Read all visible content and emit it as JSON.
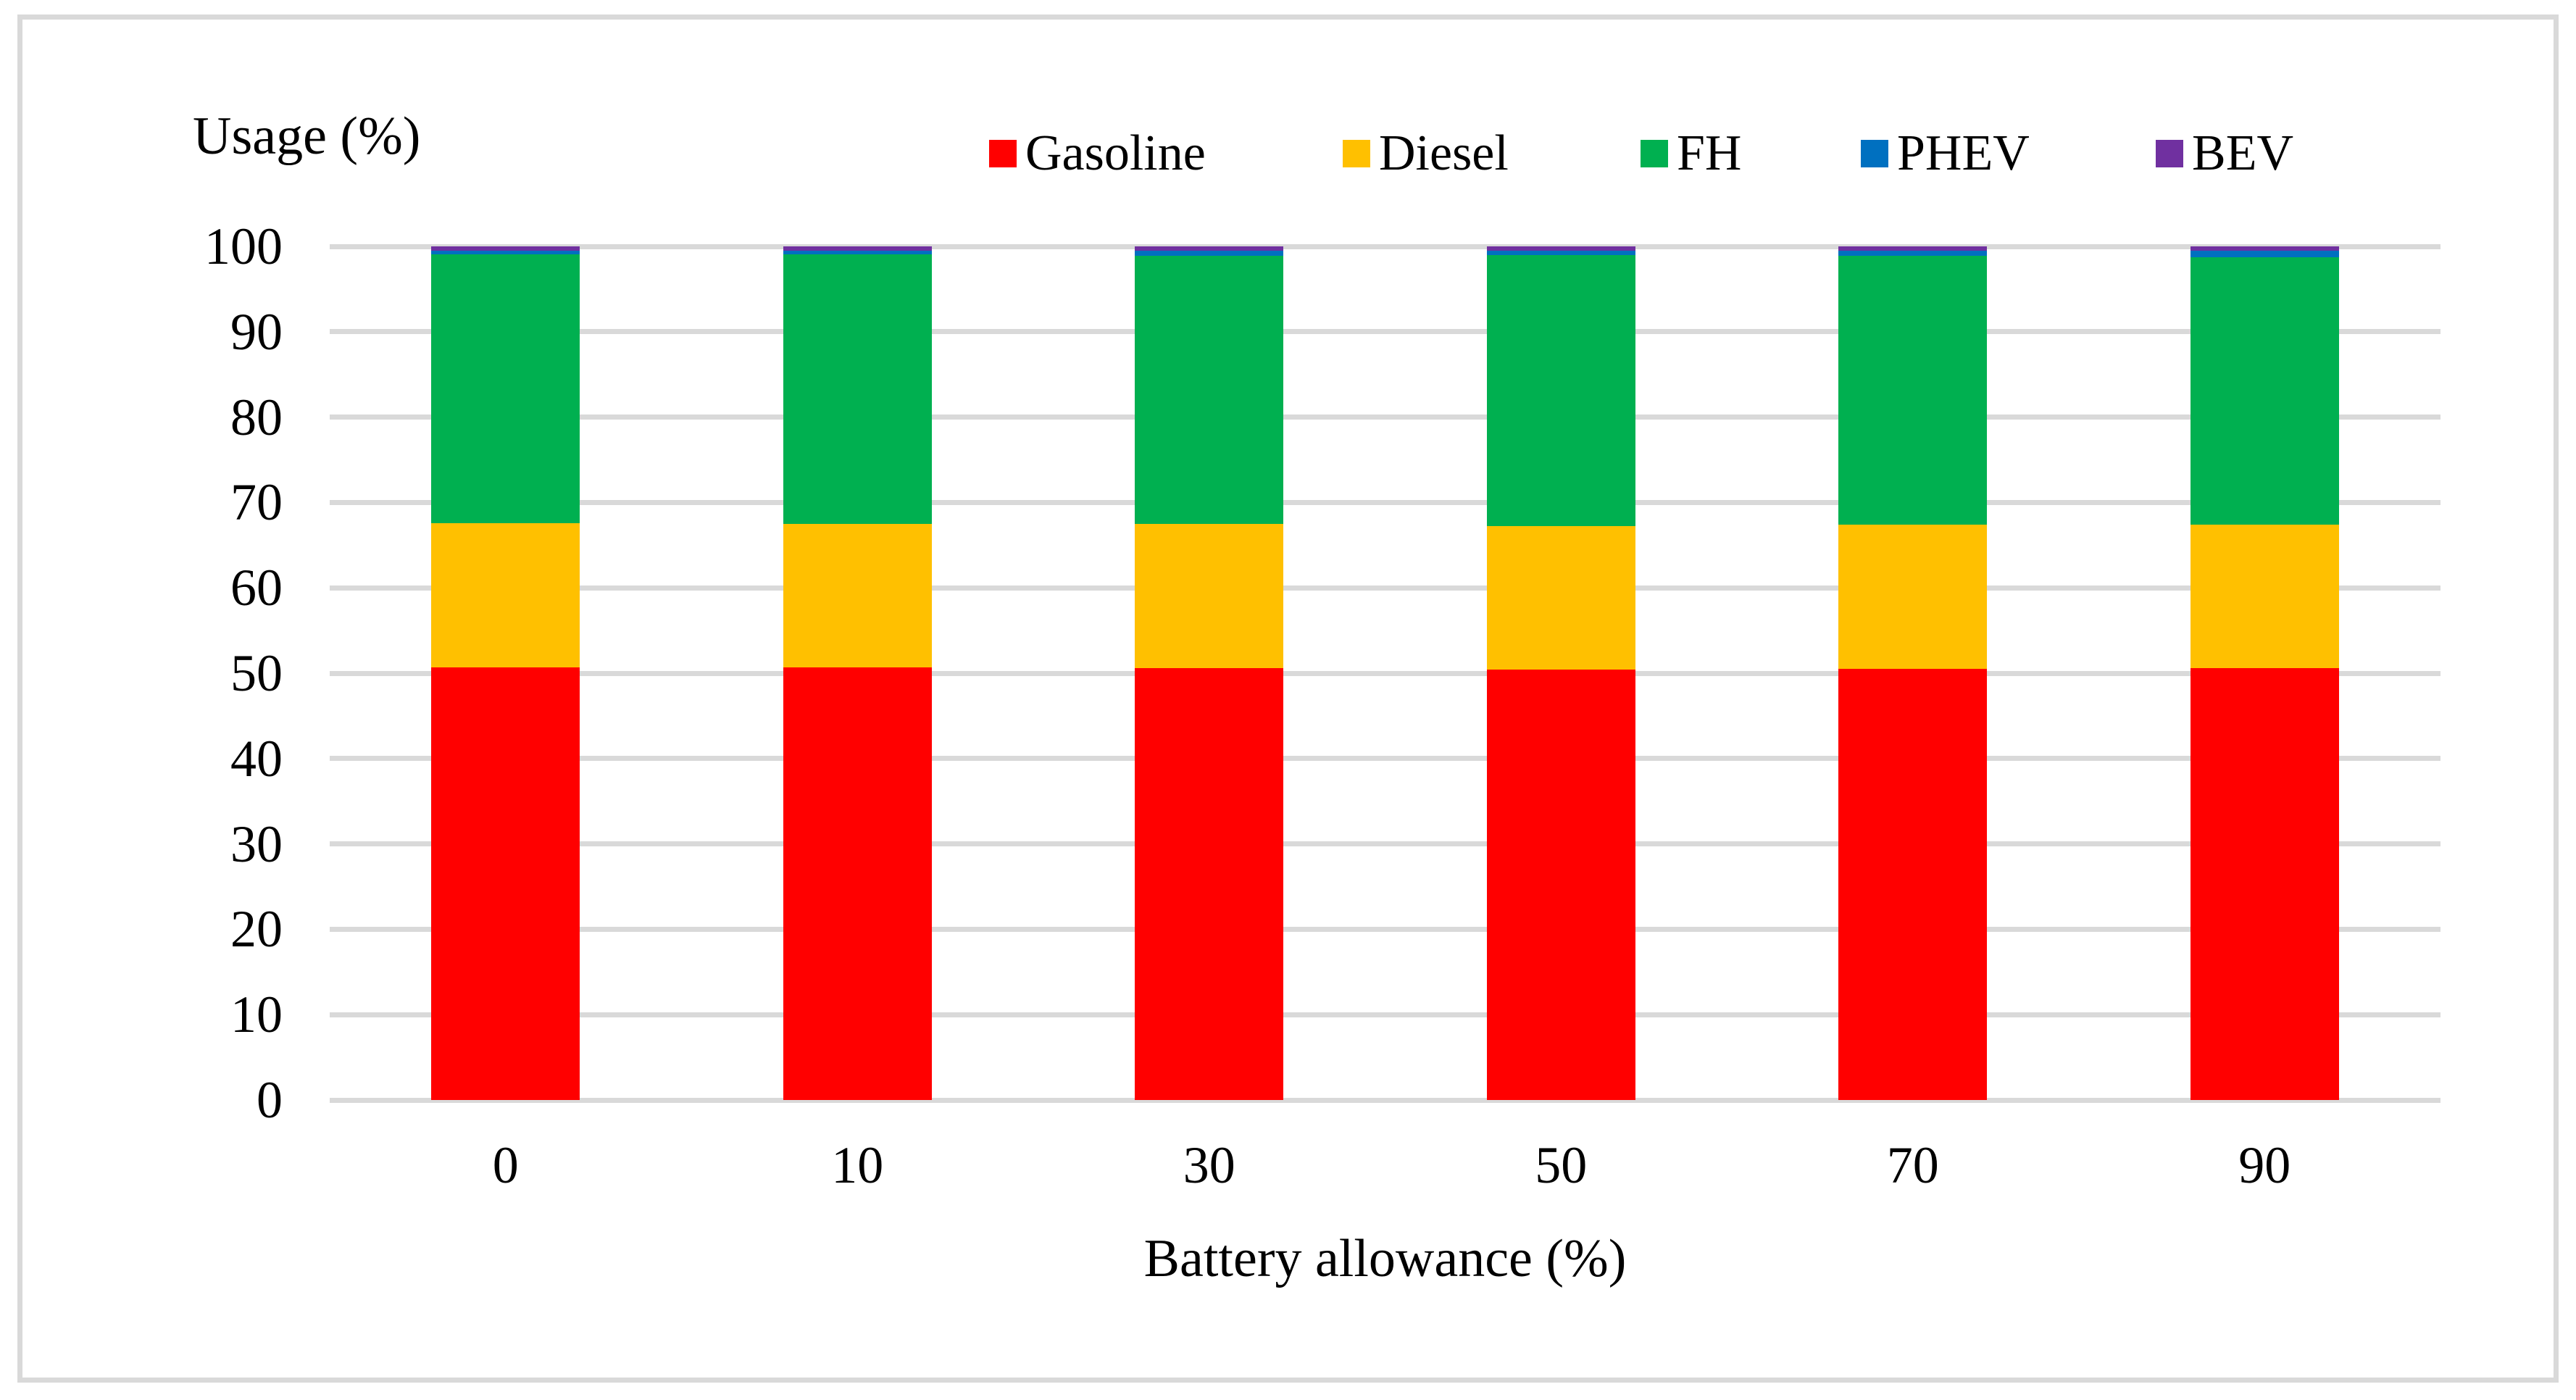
{
  "figure": {
    "y_axis_title": "Usage (%)",
    "x_axis_title": "Battery allowance (%)"
  },
  "legend": {
    "items": [
      {
        "label": "Gasoline",
        "color": "#ff0000"
      },
      {
        "label": "Diesel",
        "color": "#ffc000"
      },
      {
        "label": "FH",
        "color": "#00b050"
      },
      {
        "label": "PHEV",
        "color": "#0070c0"
      },
      {
        "label": "BEV",
        "color": "#7030a0"
      }
    ]
  },
  "chart_data": {
    "type": "bar",
    "stacked": true,
    "title": "",
    "xlabel": "Battery allowance (%)",
    "ylabel": "Usage (%)",
    "categories": [
      "0",
      "10",
      "30",
      "50",
      "70",
      "90"
    ],
    "series": [
      {
        "name": "Gasoline",
        "color": "#ff0000",
        "values": [
          50.7,
          50.7,
          50.6,
          50.4,
          50.5,
          50.6
        ]
      },
      {
        "name": "Diesel",
        "color": "#ffc000",
        "values": [
          16.9,
          16.8,
          16.9,
          16.8,
          16.9,
          16.8
        ]
      },
      {
        "name": "FH",
        "color": "#00b050",
        "values": [
          31.5,
          31.6,
          31.4,
          31.8,
          31.5,
          31.3
        ]
      },
      {
        "name": "PHEV",
        "color": "#0070c0",
        "values": [
          0.4,
          0.4,
          0.6,
          0.5,
          0.6,
          0.8
        ]
      },
      {
        "name": "BEV",
        "color": "#7030a0",
        "values": [
          0.5,
          0.5,
          0.5,
          0.5,
          0.5,
          0.5
        ]
      }
    ],
    "ylim": [
      0,
      100
    ],
    "yticks": [
      0,
      10,
      20,
      30,
      40,
      50,
      60,
      70,
      80,
      90,
      100
    ],
    "grid": true,
    "legend_position": "top",
    "gridline_color": "#d9d9d9"
  }
}
